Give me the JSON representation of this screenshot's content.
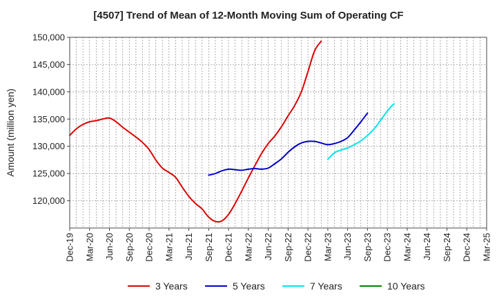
{
  "chart_data": {
    "type": "line",
    "title": "[4507]  Trend of Mean of 12-Month Moving Sum of Operating CF",
    "ylabel": "Amount (million yen)",
    "xlabel": "",
    "ylim": [
      115000,
      150000
    ],
    "yticks": [
      120000,
      125000,
      130000,
      135000,
      140000,
      145000,
      150000
    ],
    "ytick_labels": [
      "120,000",
      "125,000",
      "130,000",
      "135,000",
      "140,000",
      "145,000",
      "150,000"
    ],
    "xtick_labels": [
      "Dec-19",
      "Mar-20",
      "Jun-20",
      "Sep-20",
      "Dec-20",
      "Mar-21",
      "Jun-21",
      "Sep-21",
      "Dec-21",
      "Mar-22",
      "Jun-22",
      "Sep-22",
      "Dec-22",
      "Mar-23",
      "Jun-23",
      "Sep-23",
      "Dec-23",
      "Mar-24",
      "Jun-24",
      "Sep-24",
      "Dec-24",
      "Mar-25"
    ],
    "grid": true,
    "legend_position": "bottom",
    "series": [
      {
        "name": "3 Years",
        "color": "#dd0000",
        "start_index": 0,
        "values": [
          132000,
          133200,
          134000,
          134500,
          134700,
          135000,
          135200,
          134500,
          133500,
          132600,
          131700,
          130700,
          129400,
          127500,
          126000,
          125200,
          124300,
          122500,
          120800,
          119500,
          118500,
          117000,
          116200,
          116300,
          117500,
          119500,
          121800,
          124200,
          126500,
          128700,
          130500,
          131900,
          133600,
          135600,
          137500,
          140000,
          143700,
          147500,
          149300
        ]
      },
      {
        "name": "5 Years",
        "color": "#0000cc",
        "start_index": 21,
        "values": [
          124700,
          125000,
          125500,
          125800,
          125700,
          125600,
          125800,
          125900,
          125800,
          126000,
          126800,
          127700,
          128900,
          129900,
          130600,
          130900,
          130900,
          130600,
          130300,
          130500,
          130900,
          131600,
          133000,
          134500,
          136100
        ]
      },
      {
        "name": "7 Years",
        "color": "#00e5ee",
        "start_index": 39,
        "values": [
          127600,
          128800,
          129300,
          129700,
          130300,
          131000,
          132000,
          133200,
          134800,
          136500,
          137800
        ]
      },
      {
        "name": "10 Years",
        "color": "#008000",
        "start_index": 0,
        "values": []
      }
    ]
  }
}
